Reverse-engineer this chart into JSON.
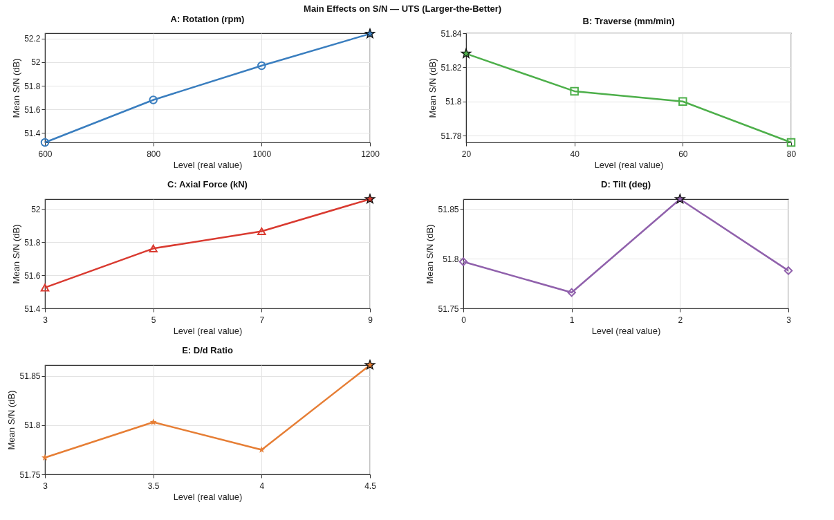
{
  "chart_data": [
    {
      "type": "line",
      "title": "A: Rotation (rpm)",
      "xlabel": "Level (real value)",
      "ylabel": "Mean S/N (dB)",
      "annotations": [
        "Main Effects on S/N — UTS (Larger-the-Better)"
      ],
      "x": [
        600,
        800,
        1000,
        1200
      ],
      "xlim": [
        600,
        1200
      ],
      "xticks": [
        600,
        800,
        1000,
        1200
      ],
      "ylim": [
        51.32,
        52.245
      ],
      "yticks": [
        51.4,
        51.6,
        51.8,
        52,
        52.2
      ],
      "grid": true,
      "series": [
        {
          "color": "#3a7ebf",
          "values": [
            51.32,
            51.68,
            51.97,
            52.24
          ],
          "marker": "circle"
        },
        {
          "type": "scatter",
          "color": "#3a7ebf",
          "x": [
            1200
          ],
          "values": [
            52.24
          ],
          "marker": "star"
        }
      ]
    },
    {
      "type": "line",
      "title": "B: Traverse (mm/min)",
      "xlabel": "Level (real value)",
      "ylabel": "Mean S/N (dB)",
      "x": [
        20,
        40,
        60,
        80
      ],
      "xlim": [
        20,
        80
      ],
      "xticks": [
        20,
        40,
        60,
        80
      ],
      "ylim": [
        51.776,
        51.84
      ],
      "yticks": [
        51.78,
        51.8,
        51.82,
        51.84
      ],
      "grid": true,
      "series": [
        {
          "color": "#4daf4a",
          "values": [
            51.828,
            51.806,
            51.8,
            51.776
          ],
          "marker": "square"
        },
        {
          "type": "scatter",
          "color": "#4daf4a",
          "x": [
            20
          ],
          "values": [
            51.828
          ],
          "marker": "star"
        }
      ]
    },
    {
      "type": "line",
      "title": "C: Axial Force (kN)",
      "xlabel": "Level (real value)",
      "ylabel": "Mean S/N (dB)",
      "x": [
        3,
        5,
        7,
        9
      ],
      "xlim": [
        3,
        9
      ],
      "xticks": [
        3,
        5,
        7,
        9
      ],
      "ylim": [
        51.4,
        52.06
      ],
      "yticks": [
        51.4,
        51.6,
        51.8,
        52
      ],
      "grid": true,
      "series": [
        {
          "color": "#d93a30",
          "values": [
            51.526,
            51.762,
            51.866,
            52.06
          ],
          "marker": "triangle"
        },
        {
          "type": "scatter",
          "color": "#d93a30",
          "x": [
            9
          ],
          "values": [
            52.06
          ],
          "marker": "star"
        }
      ]
    },
    {
      "type": "line",
      "title": "D: Tilt (deg)",
      "xlabel": "Level (real value)",
      "ylabel": "Mean S/N (dB)",
      "x": [
        0,
        1,
        2,
        3
      ],
      "xlim": [
        0,
        3
      ],
      "xticks": [
        0,
        1,
        2,
        3
      ],
      "ylim": [
        51.75,
        51.86
      ],
      "yticks": [
        51.75,
        51.8,
        51.85
      ],
      "grid": true,
      "series": [
        {
          "color": "#9061ac",
          "values": [
            51.797,
            51.766,
            51.86,
            51.788
          ],
          "marker": "diamond"
        },
        {
          "type": "scatter",
          "color": "#9061ac",
          "x": [
            2
          ],
          "values": [
            51.86
          ],
          "marker": "star"
        }
      ]
    },
    {
      "type": "line",
      "title": "E: D/d Ratio",
      "xlabel": "Level (real value)",
      "ylabel": "Mean S/N (dB)",
      "x": [
        3,
        3.5,
        4,
        4.5
      ],
      "xlim": [
        3,
        4.5
      ],
      "xticks": [
        3,
        3.5,
        4,
        4.5
      ],
      "ylim": [
        51.75,
        51.861
      ],
      "yticks": [
        51.75,
        51.8,
        51.85
      ],
      "grid": true,
      "series": [
        {
          "color": "#e67e35",
          "values": [
            51.767,
            51.803,
            51.775,
            51.861
          ],
          "marker": "star"
        },
        {
          "type": "scatter",
          "color": "#e67e35",
          "x": [
            4.5
          ],
          "values": [
            51.861
          ],
          "marker": "star"
        }
      ]
    }
  ]
}
